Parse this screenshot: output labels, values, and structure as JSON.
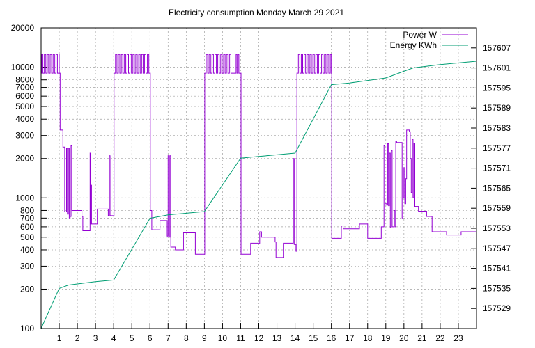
{
  "chart_data": {
    "type": "line",
    "title": "Electricity consumption Monday March 29 2021",
    "x_ticks": [
      "1",
      "2",
      "3",
      "4",
      "5",
      "6",
      "7",
      "8",
      "9",
      "10",
      "11",
      "12",
      "13",
      "14",
      "15",
      "16",
      "17",
      "18",
      "19",
      "20",
      "21",
      "22",
      "23"
    ],
    "xlim": [
      0,
      24
    ],
    "y_left": {
      "scale": "log",
      "ylim": [
        100,
        20000
      ],
      "ticks": [
        100,
        200,
        300,
        400,
        500,
        600,
        700,
        800,
        1000,
        2000,
        3000,
        4000,
        5000,
        6000,
        7000,
        8000,
        10000,
        20000
      ]
    },
    "y_right": {
      "scale": "linear",
      "ylim": [
        157523,
        157613
      ],
      "ticks": [
        157529,
        157535,
        157541,
        157547,
        157553,
        157559,
        157565,
        157571,
        157577,
        157583,
        157589,
        157595,
        157601,
        157607
      ]
    },
    "legend": {
      "position": "top-right"
    },
    "grid": true,
    "series": [
      {
        "name": "Power W",
        "axis": "left",
        "color": "#9400d3",
        "points": [
          [
            0.0,
            9000
          ],
          [
            0.02,
            12500
          ],
          [
            0.1,
            9000
          ],
          [
            0.18,
            12500
          ],
          [
            0.26,
            9000
          ],
          [
            0.34,
            12500
          ],
          [
            0.42,
            9000
          ],
          [
            0.5,
            12500
          ],
          [
            0.58,
            9000
          ],
          [
            0.66,
            12500
          ],
          [
            0.74,
            9000
          ],
          [
            0.82,
            12500
          ],
          [
            0.9,
            9000
          ],
          [
            0.98,
            12500
          ],
          [
            1.0,
            9000
          ],
          [
            1.05,
            3300
          ],
          [
            1.15,
            3300
          ],
          [
            1.2,
            2450
          ],
          [
            1.28,
            2450
          ],
          [
            1.3,
            780
          ],
          [
            1.35,
            780
          ],
          [
            1.4,
            2400
          ],
          [
            1.45,
            750
          ],
          [
            1.5,
            2400
          ],
          [
            1.55,
            700
          ],
          [
            1.6,
            720
          ],
          [
            1.65,
            2500
          ],
          [
            1.7,
            800
          ],
          [
            2.2,
            800
          ],
          [
            2.25,
            720
          ],
          [
            2.3,
            560
          ],
          [
            2.65,
            560
          ],
          [
            2.7,
            2200
          ],
          [
            2.73,
            630
          ],
          [
            2.75,
            1250
          ],
          [
            2.78,
            630
          ],
          [
            3.05,
            630
          ],
          [
            3.1,
            820
          ],
          [
            3.65,
            820
          ],
          [
            3.7,
            730
          ],
          [
            3.75,
            2100
          ],
          [
            3.8,
            730
          ],
          [
            4.0,
            730
          ],
          [
            4.02,
            9000
          ],
          [
            4.1,
            12500
          ],
          [
            4.18,
            9000
          ],
          [
            4.26,
            12500
          ],
          [
            4.34,
            9000
          ],
          [
            4.42,
            12500
          ],
          [
            4.5,
            9000
          ],
          [
            4.58,
            12500
          ],
          [
            4.66,
            9000
          ],
          [
            4.74,
            12500
          ],
          [
            4.82,
            9000
          ],
          [
            4.9,
            12500
          ],
          [
            4.98,
            9000
          ],
          [
            5.06,
            12500
          ],
          [
            5.14,
            9000
          ],
          [
            5.22,
            12500
          ],
          [
            5.3,
            9000
          ],
          [
            5.38,
            12500
          ],
          [
            5.46,
            9000
          ],
          [
            5.54,
            12500
          ],
          [
            5.62,
            9000
          ],
          [
            5.7,
            12500
          ],
          [
            5.78,
            9000
          ],
          [
            5.86,
            12500
          ],
          [
            5.94,
            9000
          ],
          [
            6.0,
            9000
          ],
          [
            6.02,
            800
          ],
          [
            6.1,
            570
          ],
          [
            6.5,
            570
          ],
          [
            6.55,
            670
          ],
          [
            6.9,
            670
          ],
          [
            6.95,
            510
          ],
          [
            7.0,
            2100
          ],
          [
            7.05,
            500
          ],
          [
            7.1,
            2100
          ],
          [
            7.15,
            420
          ],
          [
            7.35,
            420
          ],
          [
            7.4,
            400
          ],
          [
            7.8,
            400
          ],
          [
            7.85,
            540
          ],
          [
            8.4,
            540
          ],
          [
            8.5,
            370
          ],
          [
            9.0,
            370
          ],
          [
            9.02,
            9000
          ],
          [
            9.1,
            12500
          ],
          [
            9.18,
            9000
          ],
          [
            9.26,
            12500
          ],
          [
            9.34,
            9000
          ],
          [
            9.42,
            12500
          ],
          [
            9.5,
            9000
          ],
          [
            9.58,
            12500
          ],
          [
            9.66,
            9000
          ],
          [
            9.74,
            12500
          ],
          [
            9.82,
            9000
          ],
          [
            9.9,
            12500
          ],
          [
            9.98,
            9000
          ],
          [
            10.06,
            12500
          ],
          [
            10.14,
            9000
          ],
          [
            10.22,
            12500
          ],
          [
            10.3,
            9000
          ],
          [
            10.38,
            12500
          ],
          [
            10.46,
            9000
          ],
          [
            10.55,
            9000
          ],
          [
            10.7,
            9000
          ],
          [
            10.75,
            12500
          ],
          [
            10.8,
            9000
          ],
          [
            10.85,
            12500
          ],
          [
            10.9,
            9000
          ],
          [
            11.0,
            9000
          ],
          [
            11.02,
            370
          ],
          [
            11.5,
            370
          ],
          [
            11.55,
            450
          ],
          [
            12.0,
            450
          ],
          [
            12.05,
            550
          ],
          [
            12.15,
            500
          ],
          [
            12.85,
            500
          ],
          [
            12.9,
            460
          ],
          [
            12.95,
            350
          ],
          [
            13.3,
            350
          ],
          [
            13.35,
            450
          ],
          [
            13.85,
            450
          ],
          [
            13.9,
            2000
          ],
          [
            13.95,
            440
          ],
          [
            14.0,
            440
          ],
          [
            14.05,
            390
          ],
          [
            14.1,
            9000
          ],
          [
            14.18,
            12500
          ],
          [
            14.26,
            9000
          ],
          [
            14.34,
            12500
          ],
          [
            14.42,
            9000
          ],
          [
            14.5,
            12500
          ],
          [
            14.58,
            9000
          ],
          [
            14.66,
            12500
          ],
          [
            14.74,
            9000
          ],
          [
            14.82,
            12500
          ],
          [
            14.9,
            9000
          ],
          [
            14.98,
            12500
          ],
          [
            15.06,
            9000
          ],
          [
            15.14,
            12500
          ],
          [
            15.22,
            9000
          ],
          [
            15.3,
            12500
          ],
          [
            15.38,
            9000
          ],
          [
            15.46,
            12500
          ],
          [
            15.54,
            9000
          ],
          [
            15.62,
            12500
          ],
          [
            15.7,
            9000
          ],
          [
            15.78,
            12500
          ],
          [
            15.86,
            9000
          ],
          [
            15.94,
            12500
          ],
          [
            16.0,
            9000
          ],
          [
            16.02,
            490
          ],
          [
            16.5,
            490
          ],
          [
            16.55,
            610
          ],
          [
            16.65,
            580
          ],
          [
            17.5,
            580
          ],
          [
            17.55,
            630
          ],
          [
            17.95,
            630
          ],
          [
            18.0,
            490
          ],
          [
            18.7,
            490
          ],
          [
            18.75,
            600
          ],
          [
            18.85,
            600
          ],
          [
            18.9,
            2500
          ],
          [
            18.95,
            900
          ],
          [
            19.05,
            880
          ],
          [
            19.1,
            2600
          ],
          [
            19.15,
            870
          ],
          [
            19.2,
            2200
          ],
          [
            19.25,
            590
          ],
          [
            19.3,
            2300
          ],
          [
            19.35,
            600
          ],
          [
            19.45,
            800
          ],
          [
            19.5,
            600
          ],
          [
            19.55,
            2700
          ],
          [
            19.6,
            2650
          ],
          [
            19.85,
            2650
          ],
          [
            19.9,
            700
          ],
          [
            19.95,
            1000
          ],
          [
            20.0,
            1700
          ],
          [
            20.05,
            900
          ],
          [
            20.1,
            1400
          ],
          [
            20.15,
            3300
          ],
          [
            20.3,
            3200
          ],
          [
            20.35,
            2000
          ],
          [
            20.4,
            1100
          ],
          [
            20.45,
            2800
          ],
          [
            20.5,
            1000
          ],
          [
            20.55,
            2600
          ],
          [
            20.6,
            860
          ],
          [
            20.8,
            790
          ],
          [
            21.2,
            790
          ],
          [
            21.25,
            720
          ],
          [
            21.5,
            720
          ],
          [
            21.55,
            550
          ],
          [
            22.3,
            550
          ],
          [
            22.35,
            520
          ],
          [
            23.1,
            520
          ],
          [
            23.15,
            550
          ],
          [
            24.0,
            550
          ]
        ]
      },
      {
        "name": "Energy KWh",
        "axis": "right",
        "color": "#009e73",
        "points": [
          [
            0,
            157523
          ],
          [
            1,
            157535
          ],
          [
            1.5,
            157536
          ],
          [
            3,
            157537
          ],
          [
            4,
            157537.5
          ],
          [
            6,
            157556
          ],
          [
            7,
            157557
          ],
          [
            9,
            157558
          ],
          [
            11,
            157574
          ],
          [
            12,
            157574.5
          ],
          [
            14,
            157575.5
          ],
          [
            16,
            157596
          ],
          [
            17,
            157596.5
          ],
          [
            19,
            157598
          ],
          [
            20,
            157600
          ],
          [
            20.5,
            157601
          ],
          [
            22,
            157602
          ],
          [
            24,
            157603
          ]
        ]
      }
    ]
  }
}
